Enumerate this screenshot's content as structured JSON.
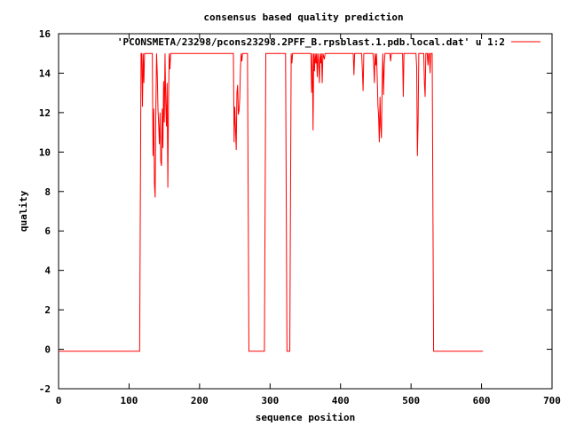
{
  "chart_data": {
    "type": "line",
    "title": "consensus based quality prediction",
    "xlabel": "sequence position",
    "ylabel": "quality",
    "xlim": [
      0,
      700
    ],
    "ylim": [
      -2,
      16
    ],
    "xticks": [
      0,
      100,
      200,
      300,
      400,
      500,
      600,
      700
    ],
    "yticks": [
      -2,
      0,
      2,
      4,
      6,
      8,
      10,
      12,
      14,
      16
    ],
    "grid": false,
    "legend_position": "top-right",
    "series": [
      {
        "name": "'PCONSMETA/23298/pcons23298.2PFF_B.rpsblast.1.pdb.local.dat' u 1:2",
        "color": "#ff0000",
        "points": [
          [
            1,
            -0.1
          ],
          [
            115,
            -0.1
          ],
          [
            116,
            7.5
          ],
          [
            117,
            15
          ],
          [
            118,
            15
          ],
          [
            119,
            12.3
          ],
          [
            120,
            15
          ],
          [
            121,
            13.5
          ],
          [
            122,
            15
          ],
          [
            133,
            15
          ],
          [
            134,
            9.8
          ],
          [
            135,
            12.2
          ],
          [
            136,
            8.4
          ],
          [
            137,
            7.7
          ],
          [
            138,
            12.1
          ],
          [
            139,
            15
          ],
          [
            140,
            14
          ],
          [
            141,
            12.2
          ],
          [
            142,
            11.4
          ],
          [
            143,
            10.4
          ],
          [
            144,
            12
          ],
          [
            145,
            9.5
          ],
          [
            146,
            9.3
          ],
          [
            147,
            12.2
          ],
          [
            148,
            10.2
          ],
          [
            149,
            13.6
          ],
          [
            150,
            11.5
          ],
          [
            151,
            15
          ],
          [
            152,
            12.5
          ],
          [
            153,
            11.3
          ],
          [
            154,
            13.5
          ],
          [
            155,
            8.2
          ],
          [
            156,
            12.7
          ],
          [
            157,
            15
          ],
          [
            158,
            14.2
          ],
          [
            159,
            15
          ],
          [
            248,
            15
          ],
          [
            249,
            10.5
          ],
          [
            250,
            12.3
          ],
          [
            251,
            11.2
          ],
          [
            252,
            10.1
          ],
          [
            253,
            13
          ],
          [
            254,
            13.4
          ],
          [
            255,
            11.9
          ],
          [
            256,
            12.1
          ],
          [
            257,
            12.7
          ],
          [
            258,
            14.2
          ],
          [
            259,
            15
          ],
          [
            260,
            14.6
          ],
          [
            261,
            15
          ],
          [
            268,
            15
          ],
          [
            269,
            7.5
          ],
          [
            270,
            -0.1
          ],
          [
            292,
            -0.1
          ],
          [
            293,
            7.5
          ],
          [
            294,
            15
          ],
          [
            322,
            15
          ],
          [
            323,
            7.5
          ],
          [
            324,
            -0.1
          ],
          [
            328,
            -0.1
          ],
          [
            329,
            7.5
          ],
          [
            330,
            15
          ],
          [
            331,
            14.5
          ],
          [
            332,
            15
          ],
          [
            358,
            15
          ],
          [
            359,
            13
          ],
          [
            360,
            15
          ],
          [
            361,
            11.1
          ],
          [
            362,
            15
          ],
          [
            363,
            14.1
          ],
          [
            364,
            15
          ],
          [
            365,
            14.5
          ],
          [
            366,
            15
          ],
          [
            367,
            13.8
          ],
          [
            368,
            15
          ],
          [
            369,
            14.6
          ],
          [
            370,
            13.5
          ],
          [
            371,
            15
          ],
          [
            372,
            14.5
          ],
          [
            373,
            15
          ],
          [
            374,
            13.5
          ],
          [
            375,
            15
          ],
          [
            377,
            14.7
          ],
          [
            378,
            15
          ],
          [
            418,
            15
          ],
          [
            419,
            13.9
          ],
          [
            420,
            15
          ],
          [
            430,
            15
          ],
          [
            431,
            14.1
          ],
          [
            432,
            13.1
          ],
          [
            433,
            15
          ],
          [
            446,
            15
          ],
          [
            447,
            14.5
          ],
          [
            448,
            13.5
          ],
          [
            449,
            15
          ],
          [
            450,
            14.4
          ],
          [
            451,
            15
          ],
          [
            452,
            13.8
          ],
          [
            453,
            12.4
          ],
          [
            454,
            11.8
          ],
          [
            455,
            10.5
          ],
          [
            456,
            12.8
          ],
          [
            457,
            11.3
          ],
          [
            458,
            10.7
          ],
          [
            459,
            13.4
          ],
          [
            460,
            15
          ],
          [
            461,
            12.9
          ],
          [
            462,
            14.4
          ],
          [
            463,
            15
          ],
          [
            470,
            15
          ],
          [
            471,
            14.6
          ],
          [
            472,
            15
          ],
          [
            488,
            15
          ],
          [
            489,
            12.8
          ],
          [
            490,
            15
          ],
          [
            507,
            15
          ],
          [
            508,
            14.3
          ],
          [
            509,
            9.8
          ],
          [
            510,
            11.5
          ],
          [
            511,
            15
          ],
          [
            518,
            15
          ],
          [
            519,
            13.5
          ],
          [
            520,
            12.8
          ],
          [
            521,
            15
          ],
          [
            523,
            15
          ],
          [
            524,
            14.4
          ],
          [
            525,
            15
          ],
          [
            526,
            15
          ],
          [
            527,
            14
          ],
          [
            528,
            15
          ],
          [
            530,
            15
          ],
          [
            531,
            7.5
          ],
          [
            532,
            -0.1
          ],
          [
            602,
            -0.1
          ]
        ]
      }
    ]
  }
}
